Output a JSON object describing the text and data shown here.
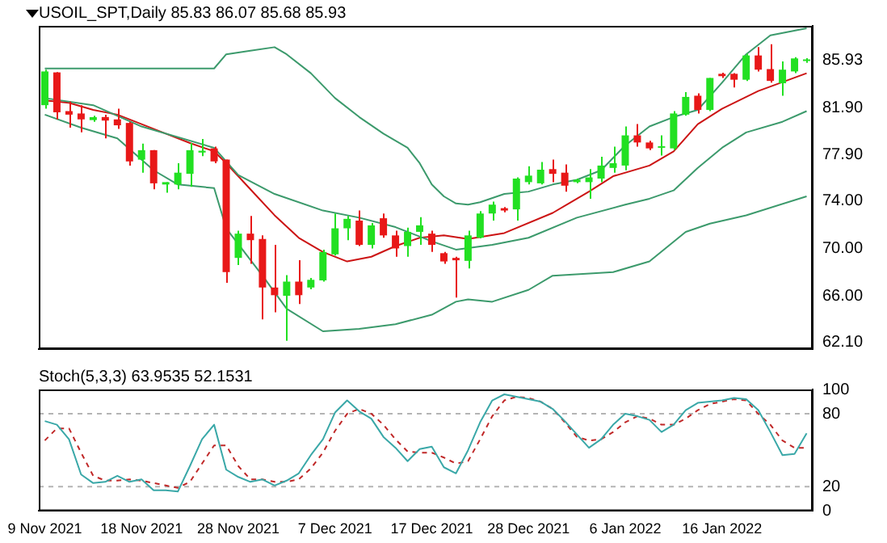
{
  "chart_data": [
    {
      "type": "candlestick",
      "title": "USOIL_SPT,Daily 85.83 86.07 85.68 85.93",
      "categories": [
        null,
        null,
        null,
        null,
        null,
        null,
        null,
        null,
        null,
        null,
        null,
        null,
        null,
        null,
        null,
        null,
        null,
        null,
        null,
        null,
        null,
        null,
        null,
        null,
        null,
        null,
        null,
        null,
        null,
        null,
        null,
        null,
        null,
        null,
        null,
        null,
        null,
        null,
        null,
        null,
        null,
        null,
        null,
        null,
        null,
        null,
        null,
        null,
        null,
        null,
        null,
        null,
        null,
        null,
        null,
        null,
        null,
        null,
        null,
        null,
        null,
        null,
        null,
        null
      ],
      "ohlc": [
        [
          82.1,
          85.1,
          81.8,
          84.95
        ],
        [
          84.87,
          84.9,
          80.9,
          81.5
        ],
        [
          81.6,
          82.4,
          80.2,
          81.3
        ],
        [
          81.4,
          82.1,
          79.8,
          80.9
        ],
        [
          80.84,
          81.2,
          80.7,
          81.09
        ],
        [
          81.1,
          81.3,
          79.3,
          80.8
        ],
        [
          80.9,
          81.8,
          80.1,
          80.4
        ],
        [
          80.6,
          80.7,
          77.0,
          77.35
        ],
        [
          77.5,
          78.85,
          76.4,
          78.3
        ],
        [
          78.3,
          78.3,
          75.0,
          75.5
        ],
        [
          75.4,
          75.6,
          74.7,
          75.6
        ],
        [
          75.4,
          77.2,
          75.0,
          76.4
        ],
        [
          76.3,
          78.9,
          75.2,
          78.3
        ],
        [
          78.1,
          79.25,
          77.8,
          78.25
        ],
        [
          78.45,
          78.6,
          77.2,
          77.35
        ],
        [
          77.5,
          77.5,
          67.1,
          68.0
        ],
        [
          69.2,
          71.5,
          68.6,
          71.25
        ],
        [
          71.25,
          72.75,
          68.7,
          70.7
        ],
        [
          70.8,
          71.1,
          64.0,
          66.7
        ],
        [
          66.7,
          70.3,
          64.6,
          66.05
        ],
        [
          66.0,
          67.75,
          62.2,
          67.2
        ],
        [
          67.2,
          69.0,
          65.3,
          66.05
        ],
        [
          66.7,
          67.5,
          66.55,
          67.35
        ],
        [
          67.3,
          69.9,
          67.2,
          69.7
        ],
        [
          69.5,
          72.95,
          69.4,
          71.7
        ],
        [
          71.7,
          72.75,
          70.7,
          72.5
        ],
        [
          72.35,
          73.2,
          70.2,
          70.3
        ],
        [
          70.3,
          72.15,
          70.0,
          71.95
        ],
        [
          72.55,
          72.95,
          70.9,
          71.1
        ],
        [
          71.1,
          71.5,
          69.3,
          70.0
        ],
        [
          70.2,
          71.75,
          69.3,
          71.4
        ],
        [
          71.4,
          72.65,
          70.3,
          71.95
        ],
        [
          71.25,
          71.5,
          69.7,
          70.3
        ],
        [
          69.6,
          69.7,
          68.7,
          68.9
        ],
        [
          69.2,
          69.3,
          65.85,
          69.0
        ],
        [
          68.95,
          71.5,
          68.3,
          71.1
        ],
        [
          70.9,
          73.15,
          70.85,
          72.95
        ],
        [
          72.95,
          73.95,
          72.35,
          73.7
        ],
        [
          73.4,
          73.5,
          73.05,
          73.2
        ],
        [
          73.3,
          76.0,
          72.35,
          75.9
        ],
        [
          75.6,
          76.95,
          75.4,
          76.15
        ],
        [
          75.5,
          77.3,
          75.4,
          76.65
        ],
        [
          76.7,
          77.5,
          75.6,
          76.3
        ],
        [
          76.4,
          77.1,
          74.8,
          75.3
        ],
        [
          75.6,
          75.9,
          75.5,
          75.8
        ],
        [
          75.6,
          76.7,
          74.2,
          76.0
        ],
        [
          75.9,
          77.75,
          75.6,
          77.0
        ],
        [
          76.8,
          78.6,
          76.4,
          77.2
        ],
        [
          77.0,
          80.3,
          76.6,
          79.55
        ],
        [
          79.55,
          80.5,
          78.6,
          78.95
        ],
        [
          78.95,
          79.1,
          78.3,
          78.45
        ],
        [
          78.5,
          79.55,
          77.85,
          78.6
        ],
        [
          78.45,
          81.6,
          78.3,
          81.4
        ],
        [
          81.3,
          83.2,
          81.2,
          82.8
        ],
        [
          82.9,
          83.1,
          81.4,
          81.7
        ],
        [
          81.7,
          84.4,
          81.6,
          84.4
        ],
        [
          84.75,
          84.85,
          84.4,
          84.55
        ],
        [
          84.75,
          84.8,
          83.6,
          84.25
        ],
        [
          84.25,
          86.45,
          84.15,
          86.3
        ],
        [
          86.3,
          87.0,
          84.95,
          85.1
        ],
        [
          85.15,
          87.25,
          84.0,
          84.15
        ],
        [
          83.95,
          85.8,
          82.9,
          85.1
        ],
        [
          84.95,
          86.15,
          84.8,
          86.05
        ],
        [
          85.83,
          86.07,
          85.68,
          85.93
        ]
      ],
      "colors": [
        "#22e022",
        "#e81818",
        "#e81818",
        "#e81818",
        "#22e022",
        "#e81818",
        "#e81818",
        "#e81818",
        "#22e022",
        "#e81818",
        "#22e022",
        "#22e022",
        "#22e022",
        "#22e022",
        "#e81818",
        "#e81818",
        "#22e022",
        "#e81818",
        "#e81818",
        "#e81818",
        "#22e022",
        "#e81818",
        "#22e022",
        "#22e022",
        "#22e022",
        "#22e022",
        "#e81818",
        "#22e022",
        "#e81818",
        "#e81818",
        "#22e022",
        "#22e022",
        "#e81818",
        "#e81818",
        "#e81818",
        "#22e022",
        "#22e022",
        "#22e022",
        "#e81818",
        "#22e022",
        "#22e022",
        "#22e022",
        "#e81818",
        "#e81818",
        "#22e022",
        "#22e022",
        "#22e022",
        "#22e022",
        "#22e022",
        "#e81818",
        "#e81818",
        "#22e022",
        "#22e022",
        "#22e022",
        "#e81818",
        "#22e022",
        "#e81818",
        "#e81818",
        "#22e022",
        "#e81818",
        "#e81818",
        "#22e022",
        "#22e022",
        "#22e022"
      ],
      "series": [
        {
          "type": "line",
          "color": "#3c9a6c",
          "values": [
            85.2,
            null,
            null,
            null,
            null,
            null,
            85.2,
            null,
            null,
            null,
            null,
            null,
            85.2,
            null,
            85.2,
            86.4,
            null,
            86.7,
            null,
            87.0,
            86.4,
            null,
            84.8,
            null,
            82.7,
            null,
            81.1,
            null,
            79.7,
            null,
            78.5,
            77.2,
            75.4,
            74.4,
            73.8,
            73.7,
            73.9,
            null,
            74.6,
            null,
            74.8,
            null,
            75.4,
            null,
            75.8,
            null,
            76.6,
            null,
            78.7,
            null,
            80.3,
            null,
            81.1,
            null,
            81.7,
            null,
            84.0,
            null,
            86.4,
            null,
            88.0,
            null,
            null,
            88.6
          ]
        },
        {
          "type": "line",
          "color": "#3c9a6c",
          "values": [
            82.7,
            null,
            null,
            null,
            82.1,
            null,
            null,
            null,
            80.3,
            null,
            null,
            null,
            null,
            null,
            78.5,
            null,
            76.2,
            null,
            null,
            74.6,
            null,
            null,
            null,
            73.2,
            null,
            null,
            72.6,
            null,
            null,
            71.8,
            null,
            null,
            70.6,
            null,
            69.9,
            null,
            null,
            70.3,
            null,
            null,
            70.9,
            null,
            null,
            null,
            72.6,
            null,
            null,
            null,
            73.7,
            null,
            74.2,
            null,
            74.9,
            null,
            76.8,
            null,
            78.5,
            null,
            79.8,
            null,
            null,
            80.7,
            null,
            81.6
          ]
        },
        {
          "type": "line",
          "color": "#3c9a6c",
          "values": [
            81.3,
            null,
            null,
            80.2,
            null,
            null,
            79.3,
            null,
            null,
            76.6,
            null,
            75.4,
            null,
            null,
            75.1,
            71.7,
            null,
            null,
            67.7,
            null,
            64.9,
            null,
            null,
            63.0,
            null,
            null,
            63.2,
            null,
            null,
            63.6,
            null,
            null,
            64.4,
            null,
            65.5,
            65.7,
            null,
            65.5,
            null,
            null,
            66.5,
            null,
            67.7,
            null,
            null,
            null,
            null,
            68.0,
            null,
            null,
            68.9,
            null,
            null,
            71.4,
            null,
            72.1,
            null,
            null,
            72.8,
            null,
            null,
            null,
            null,
            74.4
          ]
        },
        {
          "type": "line",
          "color": "#cc1414",
          "values": [
            82.5,
            null,
            82.3,
            null,
            81.7,
            null,
            81.3,
            null,
            80.5,
            null,
            79.7,
            null,
            78.9,
            null,
            78.2,
            77.2,
            null,
            75.0,
            null,
            72.8,
            null,
            70.9,
            null,
            69.7,
            null,
            68.9,
            null,
            69.3,
            null,
            70.2,
            null,
            70.9,
            null,
            71.1,
            null,
            70.8,
            null,
            null,
            71.3,
            null,
            null,
            null,
            73.0,
            null,
            null,
            74.8,
            null,
            76.1,
            null,
            null,
            77.0,
            null,
            78.2,
            null,
            80.5,
            null,
            81.8,
            null,
            null,
            83.3,
            null,
            null,
            null,
            84.8
          ]
        }
      ],
      "ylim": [
        61.5,
        88.8
      ],
      "yticks": [
        {
          "value": 62.1,
          "label": "62.10"
        },
        {
          "value": 66,
          "label": "66.00"
        },
        {
          "value": 70,
          "label": "70.00"
        },
        {
          "value": 74,
          "label": "74.00"
        },
        {
          "value": 77.9,
          "label": "77.90"
        },
        {
          "value": 81.9,
          "label": "81.90"
        },
        85.93
      ],
      "grid": false,
      "legend": false,
      "marker": "none",
      "tick_labels": "y"
    },
    {
      "type": "line",
      "title": "Stoch(5,3,3) 63.9535 52.1531",
      "categories": [
        "9 Nov 2021",
        null,
        null,
        null,
        null,
        null,
        null,
        null,
        "18 Nov 2021",
        null,
        null,
        null,
        null,
        null,
        null,
        null,
        "28 Nov 2021",
        null,
        null,
        null,
        null,
        null,
        null,
        null,
        "7 Dec 2021",
        null,
        null,
        null,
        null,
        null,
        null,
        null,
        "17 Dec 2021",
        null,
        null,
        null,
        null,
        null,
        null,
        null,
        "28 Dec 2021",
        null,
        null,
        null,
        null,
        null,
        null,
        null,
        "6 Jan 2022",
        null,
        null,
        null,
        null,
        null,
        null,
        null,
        "16 Jan 2022",
        null,
        null,
        null,
        null,
        null,
        null,
        null
      ],
      "series": [
        {
          "color": "#3aa8a8",
          "line_style": "solid",
          "values": [
            74,
            71,
            59,
            30,
            23,
            24,
            29,
            24,
            26,
            17,
            17,
            16,
            37,
            59,
            71,
            34,
            28,
            24,
            26,
            21,
            25,
            31,
            46,
            59,
            81,
            91,
            82,
            76,
            61,
            52,
            41,
            51,
            53,
            36,
            31,
            50,
            73,
            91,
            96,
            94,
            92,
            90,
            84,
            74,
            63,
            52,
            59,
            71,
            80,
            78,
            75,
            65,
            71,
            83,
            89,
            90,
            91,
            93,
            92,
            83,
            65,
            46,
            47,
            64
          ]
        },
        {
          "color": "#c02828",
          "line_style": "dashed",
          "values": [
            58,
            68,
            68,
            48,
            29,
            25,
            25,
            26,
            25,
            23,
            21,
            19,
            24,
            39,
            54,
            54,
            37,
            26,
            26,
            24,
            24,
            26,
            35,
            48,
            66,
            80,
            84,
            80,
            71,
            59,
            49,
            48,
            48,
            44,
            39,
            41,
            59,
            78,
            91,
            94,
            93,
            90,
            84,
            73,
            61,
            58,
            59,
            65,
            73,
            78,
            76,
            71,
            71,
            76,
            83,
            88,
            90,
            92,
            91,
            80,
            71,
            58,
            52,
            52
          ]
        }
      ],
      "ylim": [
        0,
        100
      ],
      "yticks": [
        0,
        20,
        80,
        100
      ],
      "ref_lines": [
        {
          "axis": "y",
          "value": 80,
          "color": "#b4b4b4",
          "line_style": "dashed"
        },
        {
          "axis": "y",
          "value": 20,
          "color": "#b4b4b4",
          "line_style": "dashed"
        }
      ],
      "grid": false,
      "legend": false,
      "marker": "none"
    }
  ]
}
